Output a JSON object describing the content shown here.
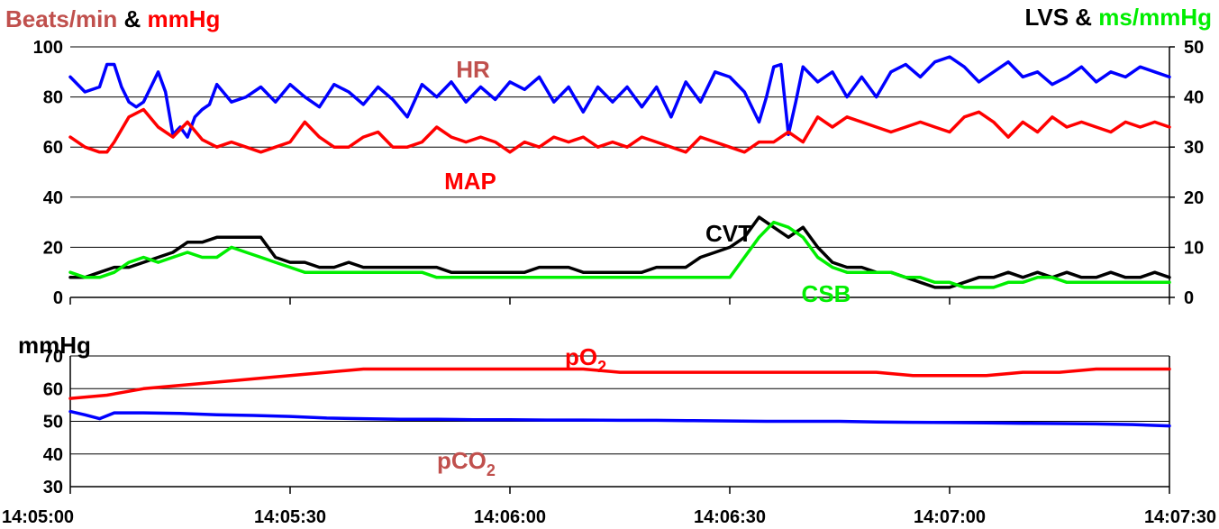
{
  "chart_data": [
    {
      "type": "line",
      "title_parts": [
        {
          "text": "Beats/min",
          "color": "#c0504d"
        },
        {
          "text": " & ",
          "color": "#000000"
        },
        {
          "text": "mmHg",
          "color": "#ff0000"
        }
      ],
      "right_title_parts": [
        {
          "text": "LVS & ",
          "color": "#000000"
        },
        {
          "text": "ms/mmHg",
          "color": "#00ee00"
        }
      ],
      "ylim": [
        0,
        100
      ],
      "y_ticks": [
        "0",
        "20",
        "40",
        "60",
        "80",
        "100"
      ],
      "y2lim": [
        0,
        50
      ],
      "y2_ticks": [
        "0",
        "10",
        "20",
        "30",
        "40",
        "50"
      ],
      "x_range_seconds": [
        0,
        150
      ],
      "grid": true,
      "series": [
        {
          "name": "HR",
          "color": "#0000ff",
          "label_color": "#c0504d",
          "x": [
            0,
            2,
            4,
            5,
            6,
            7,
            8,
            9,
            10,
            11,
            12,
            13,
            14,
            15,
            16,
            17,
            18,
            19,
            20,
            22,
            24,
            26,
            28,
            30,
            32,
            34,
            36,
            38,
            40,
            42,
            44,
            46,
            48,
            50,
            52,
            54,
            56,
            58,
            60,
            62,
            64,
            66,
            68,
            70,
            72,
            74,
            76,
            78,
            80,
            82,
            84,
            86,
            88,
            90,
            92,
            94,
            95,
            96,
            97,
            98,
            99,
            100,
            102,
            104,
            106,
            108,
            110,
            112,
            114,
            116,
            118,
            120,
            122,
            124,
            126,
            128,
            130,
            132,
            134,
            136,
            138,
            140,
            142,
            144,
            146,
            148,
            150
          ],
          "values": [
            88,
            82,
            84,
            93,
            93,
            84,
            78,
            76,
            78,
            84,
            90,
            82,
            65,
            68,
            64,
            72,
            75,
            77,
            85,
            78,
            80,
            84,
            78,
            85,
            80,
            76,
            85,
            82,
            77,
            84,
            79,
            72,
            85,
            80,
            86,
            78,
            84,
            79,
            86,
            83,
            88,
            78,
            84,
            74,
            84,
            78,
            84,
            76,
            84,
            72,
            86,
            78,
            90,
            88,
            82,
            70,
            80,
            92,
            93,
            65,
            78,
            92,
            86,
            90,
            80,
            88,
            80,
            90,
            93,
            88,
            94,
            96,
            92,
            86,
            90,
            94,
            88,
            90,
            85,
            88,
            92,
            86,
            90,
            88,
            92,
            90,
            88
          ]
        },
        {
          "name": "MAP",
          "color": "#ff0000",
          "label_color": "#ff0000",
          "x": [
            0,
            2,
            4,
            5,
            6,
            8,
            10,
            12,
            14,
            16,
            18,
            20,
            22,
            24,
            26,
            28,
            30,
            32,
            34,
            36,
            38,
            40,
            42,
            44,
            46,
            48,
            50,
            52,
            54,
            56,
            58,
            60,
            62,
            64,
            66,
            68,
            70,
            72,
            74,
            76,
            78,
            80,
            82,
            84,
            86,
            88,
            90,
            92,
            94,
            96,
            98,
            100,
            102,
            104,
            106,
            108,
            110,
            112,
            114,
            116,
            118,
            120,
            122,
            124,
            126,
            128,
            130,
            132,
            134,
            136,
            138,
            140,
            142,
            144,
            146,
            148,
            150
          ],
          "values": [
            64,
            60,
            58,
            58,
            62,
            72,
            75,
            68,
            64,
            70,
            63,
            60,
            62,
            60,
            58,
            60,
            62,
            70,
            64,
            60,
            60,
            64,
            66,
            60,
            60,
            62,
            68,
            64,
            62,
            64,
            62,
            58,
            62,
            60,
            64,
            62,
            64,
            60,
            62,
            60,
            64,
            62,
            60,
            58,
            64,
            62,
            60,
            58,
            62,
            62,
            66,
            62,
            72,
            68,
            72,
            70,
            68,
            66,
            68,
            70,
            68,
            66,
            72,
            74,
            70,
            64,
            70,
            66,
            72,
            68,
            70,
            68,
            66,
            70,
            68,
            70,
            68
          ]
        },
        {
          "name": "CVT",
          "color": "#000000",
          "label_color": "#000000",
          "axis": "right",
          "x": [
            0,
            2,
            4,
            6,
            8,
            10,
            12,
            14,
            16,
            18,
            20,
            22,
            24,
            26,
            28,
            30,
            32,
            34,
            36,
            38,
            40,
            42,
            44,
            46,
            48,
            50,
            52,
            54,
            56,
            58,
            60,
            62,
            64,
            66,
            68,
            70,
            72,
            74,
            76,
            78,
            80,
            82,
            84,
            86,
            88,
            90,
            92,
            94,
            96,
            98,
            100,
            102,
            104,
            106,
            108,
            110,
            112,
            114,
            116,
            118,
            120,
            122,
            124,
            126,
            128,
            130,
            132,
            134,
            136,
            138,
            140,
            142,
            144,
            146,
            148,
            150
          ],
          "values": [
            4,
            4,
            5,
            6,
            6,
            7,
            8,
            9,
            11,
            11,
            12,
            12,
            12,
            12,
            8,
            7,
            7,
            6,
            6,
            7,
            6,
            6,
            6,
            6,
            6,
            6,
            5,
            5,
            5,
            5,
            5,
            5,
            6,
            6,
            6,
            5,
            5,
            5,
            5,
            5,
            6,
            6,
            6,
            8,
            9,
            10,
            12,
            16,
            14,
            12,
            14,
            10,
            7,
            6,
            6,
            5,
            5,
            4,
            3,
            2,
            2,
            3,
            4,
            4,
            5,
            4,
            5,
            4,
            5,
            4,
            4,
            5,
            4,
            4,
            5,
            4
          ]
        },
        {
          "name": "CSB",
          "color": "#00ee00",
          "label_color": "#00ee00",
          "axis": "right",
          "x": [
            0,
            2,
            4,
            6,
            8,
            10,
            12,
            14,
            16,
            18,
            20,
            22,
            24,
            26,
            28,
            30,
            32,
            34,
            36,
            38,
            40,
            42,
            44,
            46,
            48,
            50,
            52,
            54,
            56,
            58,
            60,
            62,
            64,
            66,
            68,
            70,
            72,
            74,
            76,
            78,
            80,
            82,
            84,
            86,
            88,
            90,
            92,
            94,
            96,
            98,
            100,
            102,
            104,
            106,
            108,
            110,
            112,
            114,
            116,
            118,
            120,
            122,
            124,
            126,
            128,
            130,
            132,
            134,
            136,
            138,
            140,
            142,
            144,
            146,
            148,
            150
          ],
          "values": [
            5,
            4,
            4,
            5,
            7,
            8,
            7,
            8,
            9,
            8,
            8,
            10,
            9,
            8,
            7,
            6,
            5,
            5,
            5,
            5,
            5,
            5,
            5,
            5,
            5,
            4,
            4,
            4,
            4,
            4,
            4,
            4,
            4,
            4,
            4,
            4,
            4,
            4,
            4,
            4,
            4,
            4,
            4,
            4,
            4,
            4,
            8,
            12,
            15,
            14,
            12,
            8,
            6,
            5,
            5,
            5,
            5,
            4,
            4,
            3,
            3,
            2,
            2,
            2,
            3,
            3,
            4,
            4,
            3,
            3,
            3,
            3,
            3,
            3,
            3,
            3
          ]
        }
      ],
      "series_labels_display": {
        "HR": "HR",
        "MAP": "MAP",
        "CVT": "CVT",
        "CSB": "CSB"
      }
    },
    {
      "type": "line",
      "ylabel": "mmHg",
      "ylim": [
        30,
        70
      ],
      "y_ticks": [
        "30",
        "40",
        "50",
        "60",
        "70"
      ],
      "x_range_seconds": [
        0,
        150
      ],
      "x_ticks": [
        "14:05:00",
        "14:05:30",
        "14:06:00",
        "14:06:30",
        "14:07:00",
        "14:07:30"
      ],
      "grid": true,
      "series": [
        {
          "name": "pO2",
          "base": "pO",
          "sub": "2",
          "color": "#ff0000",
          "label_color": "#ff0000",
          "x": [
            0,
            5,
            10,
            15,
            20,
            25,
            30,
            35,
            40,
            45,
            50,
            55,
            60,
            65,
            70,
            75,
            80,
            85,
            90,
            95,
            100,
            105,
            110,
            115,
            120,
            125,
            130,
            135,
            140,
            145,
            150
          ],
          "values": [
            57,
            58,
            60,
            61,
            62,
            63,
            64,
            65,
            66,
            66,
            66,
            66,
            66,
            66,
            66,
            65,
            65,
            65,
            65,
            65,
            65,
            65,
            65,
            64,
            64,
            64,
            65,
            65,
            66,
            66,
            66
          ]
        },
        {
          "name": "pCO2",
          "base": "pCO",
          "sub": "2",
          "color": "#0000ff",
          "label_color": "#c0504d",
          "x": [
            0,
            2,
            4,
            6,
            10,
            15,
            20,
            25,
            30,
            35,
            40,
            45,
            50,
            55,
            60,
            65,
            70,
            75,
            80,
            85,
            90,
            95,
            100,
            105,
            110,
            115,
            120,
            125,
            130,
            135,
            140,
            145,
            150
          ],
          "values": [
            53,
            52,
            50.8,
            52.6,
            52.6,
            52.4,
            52,
            51.8,
            51.5,
            51,
            50.8,
            50.6,
            50.6,
            50.5,
            50.5,
            50.4,
            50.4,
            50.3,
            50.3,
            50.2,
            50.1,
            50,
            50,
            50,
            49.8,
            49.7,
            49.6,
            49.5,
            49.4,
            49.3,
            49.2,
            49,
            48.6
          ]
        }
      ]
    }
  ]
}
